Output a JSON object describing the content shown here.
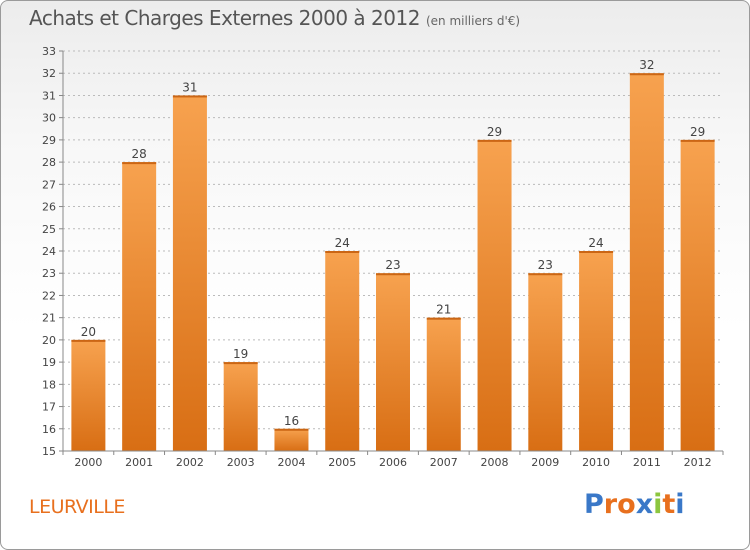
{
  "header": {
    "title": "Achats et Charges Externes 2000 à 2012",
    "subtitle": "(en milliers d'€)"
  },
  "footer": {
    "location": "LEURVILLE",
    "logo": {
      "letters": [
        "P",
        "r",
        "o",
        "x",
        "i",
        "t",
        "i"
      ],
      "colors": [
        "#3a78c8",
        "#e8701e",
        "#e8701e",
        "#3a78c8",
        "#8cc63f",
        "#e8701e",
        "#3a78c8"
      ]
    }
  },
  "colors": {
    "bar_top": "#f7a24f",
    "bar_bottom": "#d86e14",
    "grid": "#bbbbbb",
    "axis_text": "#444444"
  },
  "chart_data": {
    "type": "bar",
    "categories": [
      "2000",
      "2001",
      "2002",
      "2003",
      "2004",
      "2005",
      "2006",
      "2007",
      "2008",
      "2009",
      "2010",
      "2011",
      "2012"
    ],
    "values": [
      20,
      28,
      31,
      19,
      16,
      24,
      23,
      21,
      29,
      23,
      24,
      32,
      29
    ],
    "value_labels": [
      "20",
      "28",
      "31",
      "19",
      "16",
      "24",
      "23",
      "21",
      "29",
      "23",
      "24",
      "32",
      "29"
    ],
    "ylim": [
      15,
      33
    ],
    "yticks": [
      "15",
      "16",
      "17",
      "18",
      "19",
      "20",
      "21",
      "22",
      "23",
      "24",
      "25",
      "26",
      "27",
      "28",
      "29",
      "30",
      "31",
      "32",
      "33"
    ],
    "grid": true,
    "title": "Achats et Charges Externes 2000 à 2012",
    "xlabel": "",
    "ylabel": ""
  }
}
